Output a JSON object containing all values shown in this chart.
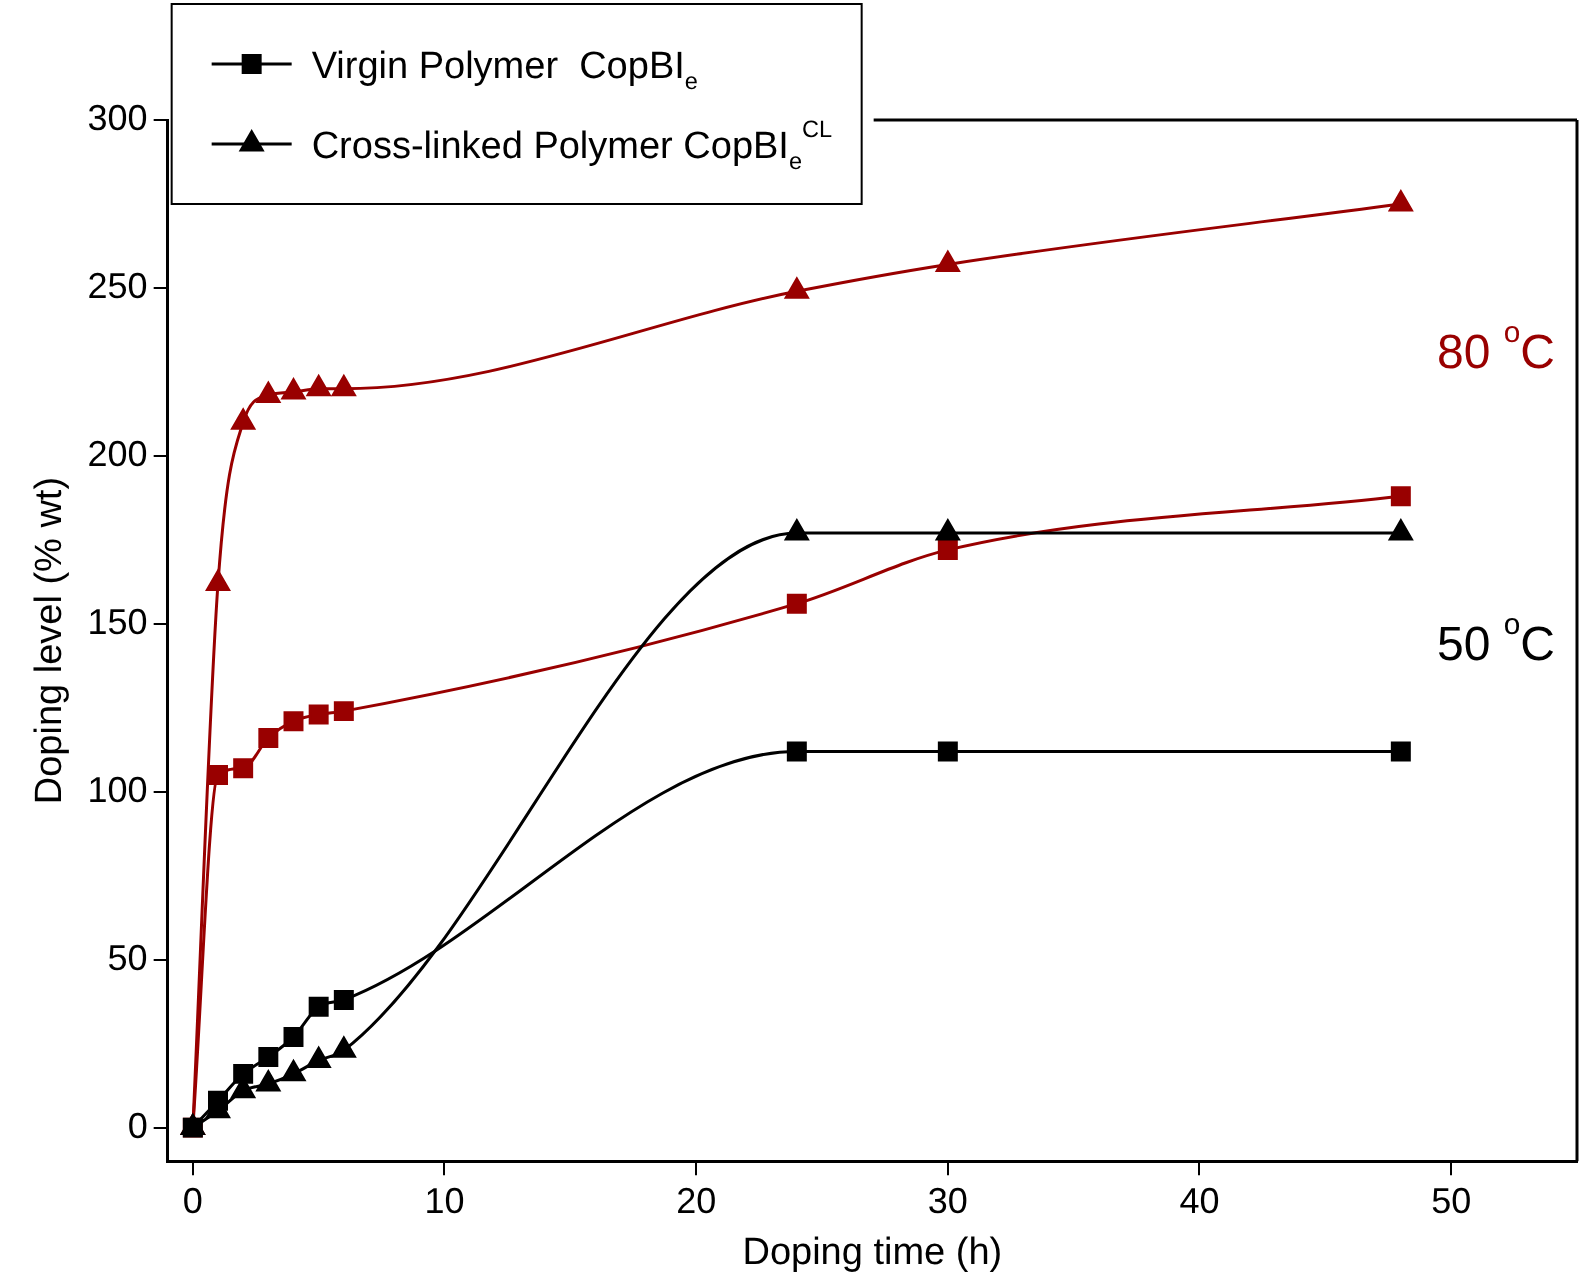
{
  "chart_data": {
    "type": "line",
    "xlabel": "Doping time (h)",
    "ylabel": "Doping level (% wt)",
    "xlim": [
      -1,
      55
    ],
    "xticks": [
      0,
      10,
      20,
      30,
      40,
      50
    ],
    "ylim": [
      -10,
      300
    ],
    "yticks": [
      0,
      50,
      100,
      150,
      200,
      250,
      300
    ],
    "grid": false,
    "legend": "top left",
    "line_style": "solid",
    "series": [
      {
        "name": "Virgin Polymer  CopBI$_{e}$",
        "color": "#000000",
        "marker": "square",
        "x": [
          0,
          1,
          2,
          3,
          4,
          5,
          6,
          24,
          30,
          48
        ],
        "values": [
          0,
          8,
          16,
          21,
          27,
          36,
          38,
          112,
          112,
          112
        ]
      },
      {
        "name": "Cross-linked Polymer CopBI$_{e}$$^{CL}$",
        "color": "#000000",
        "marker": "triangle",
        "x": [
          0,
          1,
          2,
          3,
          4,
          5,
          6,
          24,
          30,
          48
        ],
        "values": [
          0,
          5,
          11,
          13,
          16,
          20,
          23,
          177,
          177,
          177
        ]
      },
      {
        "color": "#990000",
        "marker": "square",
        "x": [
          0,
          1,
          2,
          3,
          4,
          5,
          6,
          24,
          30,
          48
        ],
        "values": [
          0,
          105,
          107,
          116,
          121,
          123,
          124,
          156,
          172,
          188
        ]
      },
      {
        "color": "#990000",
        "marker": "triangle",
        "x": [
          0,
          1,
          2,
          3,
          4,
          5,
          6,
          24,
          30,
          48
        ],
        "values": [
          0,
          162,
          210,
          218,
          219,
          220,
          220,
          249,
          257,
          275
        ]
      }
    ],
    "annotations": [
      "80 $^{o}$C",
      "50 $^{o}$C"
    ]
  }
}
